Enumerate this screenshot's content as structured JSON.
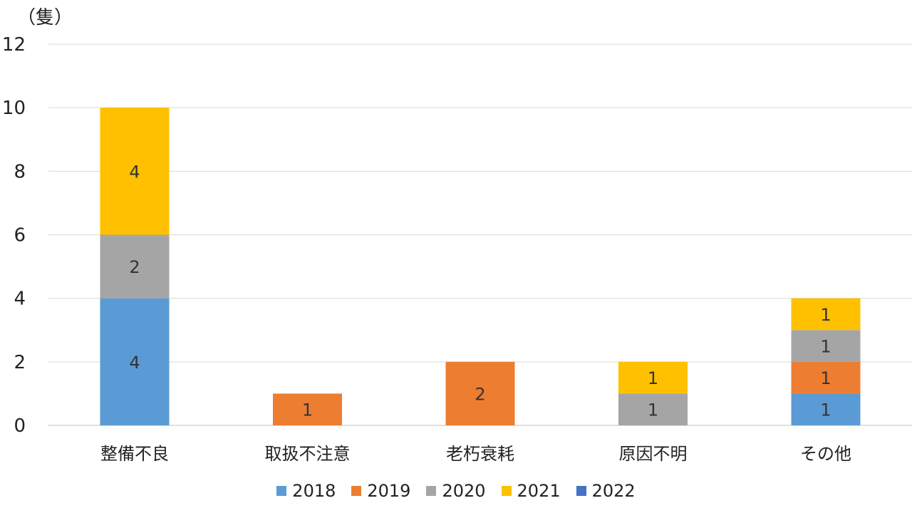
{
  "chart_data": {
    "type": "bar",
    "stacked": true,
    "unit_label": "（隻）",
    "categories": [
      "整備不良",
      "取扱不注意",
      "老朽衰耗",
      "原因不明",
      "その他"
    ],
    "series": [
      {
        "name": "2018",
        "color": "#5B9BD5",
        "values": [
          4,
          0,
          0,
          0,
          1
        ]
      },
      {
        "name": "2019",
        "color": "#ED7D31",
        "values": [
          0,
          1,
          2,
          0,
          1
        ]
      },
      {
        "name": "2020",
        "color": "#A5A5A5",
        "values": [
          2,
          0,
          0,
          1,
          1
        ]
      },
      {
        "name": "2021",
        "color": "#FFC000",
        "values": [
          4,
          0,
          0,
          1,
          1
        ]
      },
      {
        "name": "2022",
        "color": "#4472C4",
        "values": [
          0,
          0,
          0,
          0,
          0
        ]
      }
    ],
    "ylim": [
      0,
      12
    ],
    "yticks": [
      0,
      2,
      4,
      6,
      8,
      10,
      12
    ],
    "grid": true,
    "legend_position": "bottom",
    "show_data_labels": true
  }
}
